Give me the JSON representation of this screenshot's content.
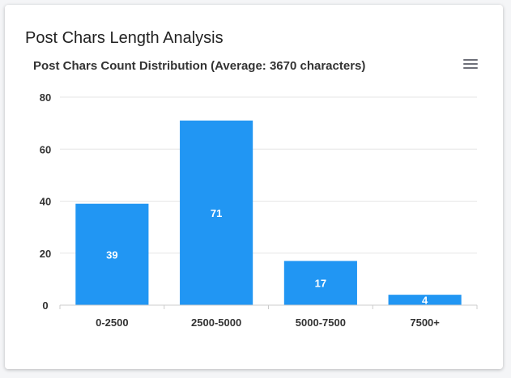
{
  "card": {
    "title": "Post Chars Length Analysis"
  },
  "toolbar": {
    "menu_icon": "hamburger-menu-icon"
  },
  "colors": {
    "bar": "#2196f3",
    "grid": "#e6e6e6",
    "axis": "#cccccc",
    "text": "#333333"
  },
  "chart_data": {
    "type": "bar",
    "title": "Post Chars Count Distribution (Average: 3670 characters)",
    "categories": [
      "0-2500",
      "2500-5000",
      "5000-7500",
      "7500+"
    ],
    "values": [
      39,
      71,
      17,
      4
    ],
    "ylim": [
      0,
      80
    ],
    "yticks": [
      0,
      20,
      40,
      60,
      80
    ],
    "xlabel": "",
    "ylabel": "",
    "grid": true,
    "data_labels": true
  }
}
